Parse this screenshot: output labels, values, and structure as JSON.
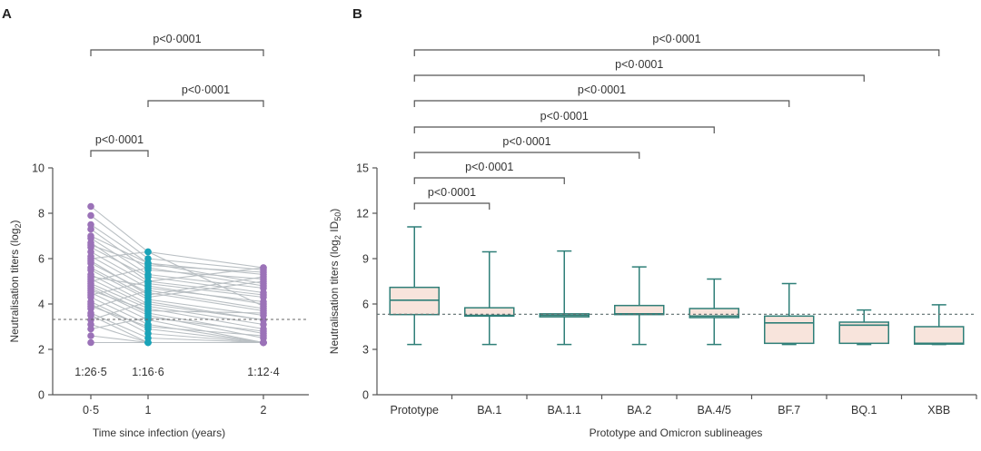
{
  "panels": {
    "a": {
      "label": "A"
    },
    "b": {
      "label": "B"
    }
  },
  "chart_data": [
    {
      "type": "line",
      "panel": "A",
      "xlabel": "Time since infection (years)",
      "ylabel_main": "Neutralisation titers (log",
      "ylabel_sub": "2",
      "ylabel_end": ")",
      "x_ticks": [
        "0·5",
        "1",
        "2"
      ],
      "ylim": [
        0,
        10
      ],
      "y_ticks": [
        0,
        2,
        4,
        6,
        8,
        10
      ],
      "threshold": 3.32,
      "gmt_labels": [
        "1:26·5",
        "1:16·6",
        "1:12·4"
      ],
      "comparisons": [
        {
          "from": "0·5",
          "to": "2",
          "label": "p<0·0001"
        },
        {
          "from": "1",
          "to": "2",
          "label": "p<0·0001"
        },
        {
          "from": "0·5",
          "to": "1",
          "label": "p<0·0001"
        }
      ],
      "colors": {
        "t1": "#9b72b8",
        "t2": "#1aa3b8",
        "t3": "#9b72b8",
        "lines": "#b9bfc3"
      },
      "subjects": [
        [
          8.3,
          6.3,
          5.6
        ],
        [
          7.9,
          6.0,
          5.5
        ],
        [
          7.5,
          5.8,
          5.3
        ],
        [
          7.3,
          5.5,
          5.1
        ],
        [
          7.0,
          5.8,
          4.9
        ],
        [
          6.9,
          5.3,
          4.7
        ],
        [
          6.7,
          5.0,
          5.6
        ],
        [
          6.5,
          5.2,
          4.5
        ],
        [
          6.3,
          4.9,
          4.3
        ],
        [
          6.1,
          4.7,
          4.1
        ],
        [
          6.0,
          6.3,
          3.9
        ],
        [
          5.8,
          4.5,
          3.7
        ],
        [
          5.6,
          4.3,
          5.0
        ],
        [
          5.5,
          4.2,
          3.5
        ],
        [
          5.3,
          4.0,
          3.3
        ],
        [
          5.1,
          3.9,
          3.1
        ],
        [
          5.0,
          5.6,
          4.8
        ],
        [
          4.9,
          3.8,
          2.9
        ],
        [
          4.8,
          3.6,
          2.7
        ],
        [
          4.7,
          3.5,
          2.5
        ],
        [
          4.5,
          3.3,
          2.3
        ],
        [
          4.4,
          5.0,
          4.4
        ],
        [
          4.3,
          3.1,
          2.3
        ],
        [
          4.1,
          2.9,
          2.3
        ],
        [
          4.0,
          2.7,
          2.3
        ],
        [
          3.8,
          4.6,
          3.8
        ],
        [
          3.6,
          2.5,
          2.3
        ],
        [
          3.5,
          2.3,
          2.3
        ],
        [
          3.3,
          4.1,
          3.3
        ],
        [
          3.1,
          2.3,
          2.3
        ],
        [
          2.9,
          3.4,
          2.8
        ],
        [
          2.6,
          2.3,
          2.3
        ],
        [
          2.3,
          2.3,
          2.3
        ],
        [
          6.6,
          5.7,
          5.4
        ],
        [
          5.9,
          4.4,
          5.2
        ],
        [
          5.2,
          4.8,
          4.0
        ],
        [
          4.6,
          3.7,
          3.6
        ],
        [
          3.9,
          3.0,
          2.6
        ]
      ]
    },
    {
      "type": "box",
      "panel": "B",
      "xlabel": "Prototype and Omicron sublineages",
      "ylabel_main": "Neutralisation titers (log",
      "ylabel_sub": "2",
      "ylabel_mid": " ID",
      "ylabel_sub2": "50",
      "ylabel_end": ")",
      "ylim": [
        0,
        15
      ],
      "y_ticks": [
        0,
        3,
        6,
        9,
        12,
        15
      ],
      "threshold": 5.32,
      "colors": {
        "box_fill": "#f8e4dc",
        "box_stroke": "#2f7f78",
        "dashed": "#5c6e6e"
      },
      "categories": [
        "Prototype",
        "BA.1",
        "BA.1.1",
        "BA.2",
        "BA.4/5",
        "BF.7",
        "BQ.1",
        "XBB"
      ],
      "boxes": [
        {
          "min": 3.32,
          "q1": 5.3,
          "median": 6.25,
          "q3": 7.1,
          "max": 11.1
        },
        {
          "min": 3.32,
          "q1": 5.2,
          "median": 5.25,
          "q3": 5.75,
          "max": 9.45
        },
        {
          "min": 3.32,
          "q1": 5.15,
          "median": 5.25,
          "q3": 5.35,
          "max": 9.5
        },
        {
          "min": 3.32,
          "q1": 5.3,
          "median": 5.35,
          "q3": 5.9,
          "max": 8.45
        },
        {
          "min": 3.32,
          "q1": 5.1,
          "median": 5.2,
          "q3": 5.7,
          "max": 7.65
        },
        {
          "min": 3.32,
          "q1": 3.4,
          "median": 4.75,
          "q3": 5.2,
          "max": 7.35
        },
        {
          "min": 3.32,
          "q1": 3.4,
          "median": 4.6,
          "q3": 4.8,
          "max": 5.6
        },
        {
          "min": 3.32,
          "q1": 3.35,
          "median": 3.4,
          "q3": 4.5,
          "max": 5.95
        }
      ],
      "comparisons": [
        {
          "from": "Prototype",
          "to": "XBB",
          "label": "p<0·0001"
        },
        {
          "from": "Prototype",
          "to": "BQ.1",
          "label": "p<0·0001"
        },
        {
          "from": "Prototype",
          "to": "BF.7",
          "label": "p<0·0001"
        },
        {
          "from": "Prototype",
          "to": "BA.4/5",
          "label": "p<0·0001"
        },
        {
          "from": "Prototype",
          "to": "BA.2",
          "label": "p<0·0001"
        },
        {
          "from": "Prototype",
          "to": "BA.1.1",
          "label": "p<0·0001"
        },
        {
          "from": "Prototype",
          "to": "BA.1",
          "label": "p<0·0001"
        }
      ]
    }
  ]
}
